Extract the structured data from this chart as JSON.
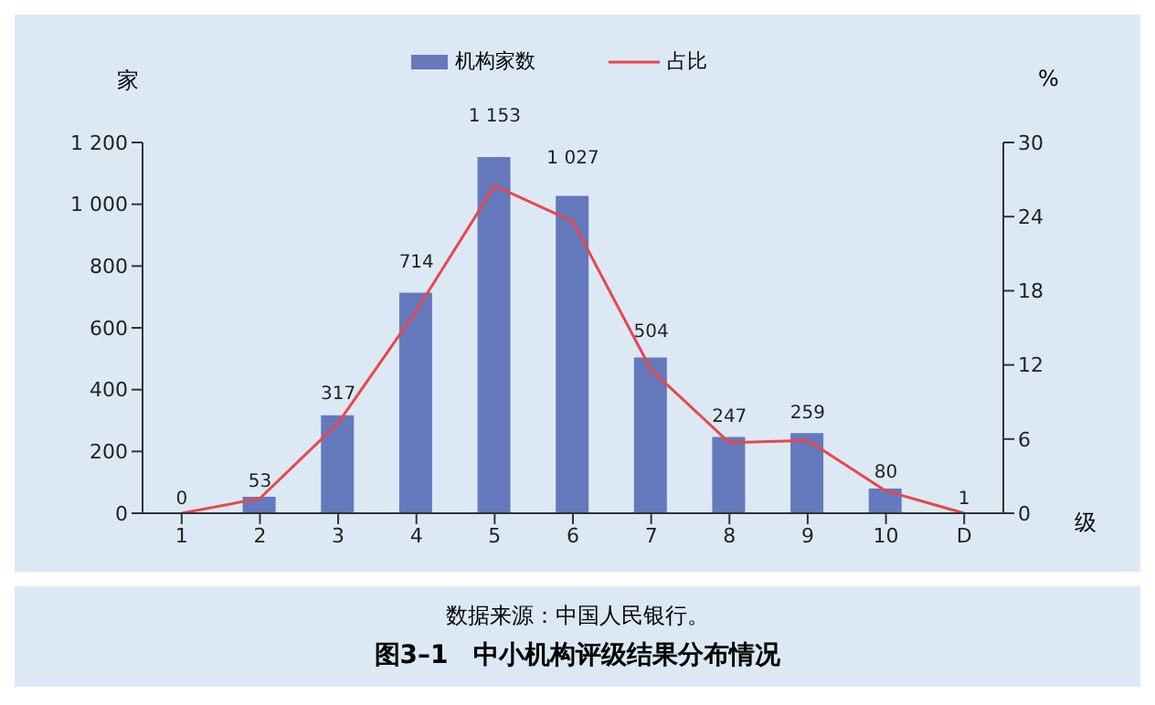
{
  "chart_data": {
    "type": "bar",
    "title": "图3–1　中小机构评级结果分布情况",
    "annotations": [
      "数据来源：中国人民银行。"
    ],
    "xlabel": "级",
    "ylabel": "家",
    "y2label": "%",
    "categories": [
      "1",
      "2",
      "3",
      "4",
      "5",
      "6",
      "7",
      "8",
      "9",
      "10",
      "D"
    ],
    "series": [
      {
        "name": "机构家数",
        "color": "#6579bd",
        "values": [
          0,
          53,
          317,
          714,
          1153,
          1027,
          504,
          247,
          259,
          80,
          1
        ],
        "value_labels": [
          "0",
          "53",
          "317",
          "714",
          "1 153",
          "1 027",
          "504",
          "247",
          "259",
          "80",
          "1"
        ]
      },
      {
        "name": "占比",
        "type": "line",
        "axis": "y2",
        "color": "#e8474a",
        "values": [
          0,
          1.2,
          7.3,
          16.4,
          26.5,
          23.6,
          11.6,
          5.7,
          5.9,
          1.8,
          0
        ]
      }
    ],
    "ylim": [
      0,
      1200
    ],
    "yticks": [
      0,
      200,
      400,
      600,
      800,
      {
        "value": 1000,
        "label": "1 000"
      },
      {
        "value": 1200,
        "label": "1 200"
      }
    ],
    "y2lim": [
      0,
      30
    ],
    "y2ticks": [
      0,
      6,
      12,
      18,
      24,
      30
    ],
    "legend": "top",
    "grid": false,
    "marker": "none"
  }
}
